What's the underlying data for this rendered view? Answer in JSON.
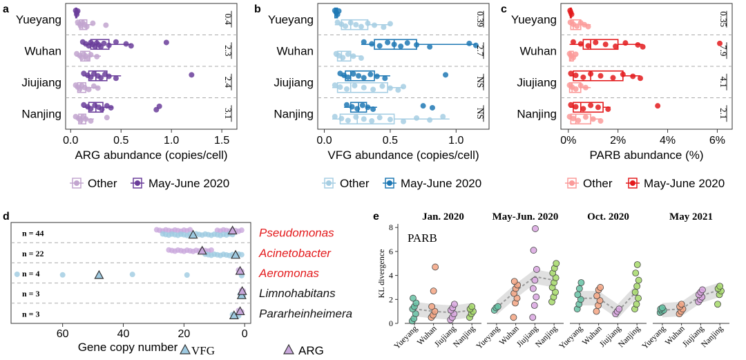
{
  "colors": {
    "purple_dark": "#6a3d9a",
    "purple_light": "#c2a5cf",
    "blue_dark": "#1f78b4",
    "blue_light": "#a6cee3",
    "red_dark": "#e31a1c",
    "red_light": "#fb9a99",
    "arg_marker": "#c9a8dc",
    "vfg_marker": "#9ecae1",
    "e_yueyang": "#66c2a5",
    "e_wuhan": "#f4a582",
    "e_jiujiang": "#d9a6e0",
    "e_nanjing": "#a6d96a",
    "red_text": "#e31a1c"
  },
  "panel_labels": {
    "a": "a",
    "b": "b",
    "c": "c",
    "d": "d",
    "e": "e"
  },
  "chart_data": [
    {
      "id": "a",
      "type": "boxplot",
      "orientation": "horizontal",
      "categories": [
        "Yueyang",
        "Wuhan",
        "Jiujiang",
        "Nanjing"
      ],
      "xlabel": "ARG abundance (copies/cell)",
      "xlim": [
        -0.05,
        1.65
      ],
      "xticks": [
        0.0,
        0.5,
        1.0,
        1.5
      ],
      "xtick_labels": [
        "0.0",
        "0.5",
        "1.0",
        "1.5"
      ],
      "annotations": [
        "0.4",
        "2.3",
        "2.4",
        "3.1"
      ],
      "legend": [
        "Other",
        "May-June 2020"
      ],
      "groups": [
        {
          "may": {
            "box": [
              0.05,
              0.05,
              0.06,
              0.06,
              0.07
            ],
            "points": [
              0.05,
              0.06,
              0.06,
              0.07
            ]
          },
          "other": {
            "box": [
              0.05,
              0.09,
              0.12,
              0.16,
              0.22
            ],
            "points": [
              0.07,
              0.09,
              0.1,
              0.12,
              0.14,
              0.16,
              0.22,
              0.35
            ]
          }
        },
        {
          "may": {
            "box": [
              0.12,
              0.2,
              0.26,
              0.38,
              0.6
            ],
            "points": [
              0.12,
              0.15,
              0.18,
              0.2,
              0.22,
              0.24,
              0.26,
              0.28,
              0.3,
              0.33,
              0.38,
              0.45,
              0.55,
              0.6,
              0.95
            ]
          },
          "other": {
            "box": [
              0.05,
              0.1,
              0.14,
              0.19,
              0.3
            ],
            "points": [
              0.06,
              0.09,
              0.11,
              0.13,
              0.15,
              0.17,
              0.2,
              0.26
            ]
          }
        },
        {
          "may": {
            "box": [
              0.12,
              0.18,
              0.25,
              0.36,
              0.5
            ],
            "points": [
              0.13,
              0.17,
              0.2,
              0.23,
              0.27,
              0.3,
              0.34,
              0.38,
              0.45,
              1.2
            ]
          },
          "other": {
            "box": [
              0.05,
              0.07,
              0.1,
              0.15,
              0.28
            ],
            "points": [
              0.05,
              0.07,
              0.09,
              0.11,
              0.14,
              0.18,
              0.23,
              0.27
            ]
          }
        },
        {
          "may": {
            "box": [
              0.12,
              0.18,
              0.25,
              0.32,
              0.42
            ],
            "points": [
              0.13,
              0.17,
              0.2,
              0.24,
              0.28,
              0.31,
              0.36,
              0.4,
              0.85,
              0.88
            ]
          },
          "other": {
            "box": [
              0.05,
              0.08,
              0.11,
              0.15,
              0.23
            ],
            "points": [
              0.05,
              0.08,
              0.1,
              0.12,
              0.15,
              0.2,
              0.36
            ]
          }
        }
      ]
    },
    {
      "id": "b",
      "type": "boxplot",
      "orientation": "horizontal",
      "categories": [
        "Yueyang",
        "Wuhan",
        "Jiujiang",
        "Nanjing"
      ],
      "xlabel": "VFG abundance (copies/cell)",
      "xlim": [
        -0.05,
        1.25
      ],
      "xticks": [
        0.0,
        0.5,
        1.0
      ],
      "xtick_labels": [
        "0.0",
        "0.5",
        "1.0"
      ],
      "annotations": [
        "0.39",
        "2.7",
        "NS",
        "NS"
      ],
      "legend": [
        "Other",
        "May-June 2020"
      ],
      "groups": [
        {
          "may": {
            "box": [
              0.07,
              0.08,
              0.09,
              0.1,
              0.12
            ],
            "points": [
              0.08,
              0.09,
              0.1,
              0.11
            ]
          },
          "other": {
            "box": [
              0.08,
              0.13,
              0.2,
              0.33,
              0.5
            ],
            "points": [
              0.1,
              0.13,
              0.16,
              0.2,
              0.24,
              0.28,
              0.33,
              0.38,
              0.45,
              0.5
            ]
          }
        },
        {
          "may": {
            "box": [
              0.28,
              0.38,
              0.53,
              0.7,
              1.15
            ],
            "points": [
              0.3,
              0.36,
              0.42,
              0.48,
              0.53,
              0.58,
              0.63,
              0.7,
              0.8,
              1.1,
              1.15
            ]
          },
          "other": {
            "box": [
              0.08,
              0.1,
              0.13,
              0.2,
              0.28
            ],
            "points": [
              0.09,
              0.11,
              0.14,
              0.18,
              0.22,
              0.28
            ]
          }
        },
        {
          "may": {
            "box": [
              0.12,
              0.16,
              0.2,
              0.38,
              0.5
            ],
            "points": [
              0.12,
              0.15,
              0.18,
              0.22,
              0.26,
              0.3,
              0.35,
              0.4,
              0.46,
              0.92
            ]
          },
          "other": {
            "box": [
              0.06,
              0.1,
              0.2,
              0.48,
              0.6
            ],
            "points": [
              0.08,
              0.12,
              0.17,
              0.23,
              0.3,
              0.37,
              0.44,
              0.5,
              0.56,
              0.6
            ]
          }
        },
        {
          "may": {
            "box": [
              0.15,
              0.2,
              0.26,
              0.32,
              0.4
            ],
            "points": [
              0.17,
              0.21,
              0.25,
              0.29,
              0.33,
              0.37,
              0.75,
              0.82
            ]
          },
          "other": {
            "box": [
              0.06,
              0.12,
              0.25,
              0.53,
              0.95
            ],
            "points": [
              0.08,
              0.13,
              0.18,
              0.24,
              0.3,
              0.36,
              0.42,
              0.5,
              0.6,
              0.7,
              0.8,
              0.9
            ]
          }
        }
      ]
    },
    {
      "id": "c",
      "type": "boxplot",
      "orientation": "horizontal",
      "categories": [
        "Yueyang",
        "Wuhan",
        "Jiujiang",
        "Nanjing"
      ],
      "xlabel": "PARB abundance (%)",
      "xlim": [
        -0.3,
        6.6
      ],
      "xticks": [
        0,
        2,
        4,
        6
      ],
      "xtick_labels": [
        "0%",
        "2%",
        "4%",
        "6%"
      ],
      "annotations": [
        "0.35",
        "7.9",
        "4.1",
        "2.1"
      ],
      "legend": [
        "Other",
        "May-June 2020"
      ],
      "groups": [
        {
          "may": {
            "box": [
              0.05,
              0.08,
              0.1,
              0.12,
              0.15
            ],
            "points": [
              0.07,
              0.1,
              0.13
            ]
          },
          "other": {
            "box": [
              0.05,
              0.1,
              0.2,
              0.5,
              0.9
            ],
            "points": [
              0.08,
              0.2,
              0.35,
              0.5,
              0.65,
              0.8
            ]
          }
        },
        {
          "may": {
            "box": [
              0.05,
              0.6,
              0.9,
              2.0,
              3.0
            ],
            "points": [
              0.2,
              0.5,
              0.8,
              1.1,
              1.5,
              1.9,
              2.3,
              2.8,
              3.0,
              6.1
            ]
          },
          "other": {
            "box": [
              0.02,
              0.05,
              0.1,
              0.2,
              0.35
            ],
            "points": [
              0.05,
              0.1,
              0.2,
              0.3
            ]
          }
        },
        {
          "may": {
            "box": [
              0.05,
              0.2,
              0.9,
              2.2,
              2.9
            ],
            "points": [
              0.1,
              0.3,
              0.6,
              0.9,
              1.3,
              1.8,
              2.2,
              2.6,
              2.9
            ]
          },
          "other": {
            "box": [
              0.02,
              0.05,
              0.15,
              0.5,
              0.9
            ],
            "points": [
              0.05,
              0.15,
              0.3,
              0.5,
              0.7
            ]
          }
        },
        {
          "may": {
            "box": [
              0.05,
              0.2,
              0.5,
              1.4,
              1.7
            ],
            "points": [
              0.1,
              0.3,
              0.6,
              0.9,
              1.2,
              1.6,
              3.6
            ]
          },
          "other": {
            "box": [
              0.02,
              0.1,
              0.3,
              0.9,
              1.3
            ],
            "points": [
              0.05,
              0.2,
              0.4,
              0.7,
              1.0,
              1.3
            ]
          }
        }
      ]
    },
    {
      "id": "d",
      "type": "scatter",
      "xlabel": "Gene copy number",
      "xlim": [
        77,
        -2
      ],
      "xaxis_reversed": true,
      "xticks": [
        60,
        40,
        20,
        0
      ],
      "xtick_labels": [
        "60",
        "40",
        "20",
        "0"
      ],
      "legend": [
        "VFG",
        "ARG"
      ],
      "rows": [
        {
          "n": "n = 44",
          "genus": "Pseudomonas",
          "highlight": true,
          "vfg_points": [
            27,
            26,
            25,
            24,
            23,
            22,
            21,
            20,
            19,
            18,
            17,
            16,
            15,
            14,
            13,
            12,
            11,
            10,
            9,
            8,
            7,
            6,
            5,
            4
          ],
          "arg_points": [
            29,
            28,
            27,
            26,
            25,
            24,
            23,
            22,
            21,
            20,
            19,
            18,
            9,
            8,
            7,
            6,
            5,
            4,
            3,
            2,
            1
          ],
          "vfg_mean": 17,
          "arg_mean": 4
        },
        {
          "n": "n = 22",
          "genus": "Acinetobacter",
          "highlight": true,
          "vfg_points": [
            13,
            12,
            11,
            10,
            9,
            8,
            7,
            6,
            5,
            4,
            3,
            2,
            1
          ],
          "arg_points": [
            25,
            24,
            23,
            22,
            21,
            20,
            19,
            18,
            17,
            16,
            15,
            14,
            13,
            12,
            11
          ],
          "vfg_mean": 3,
          "arg_mean": 14
        },
        {
          "n": "n = 4",
          "genus": "Aeromonas",
          "highlight": true,
          "vfg_points": [
            75,
            60,
            48,
            37,
            19,
            1
          ],
          "arg_points": [
            2,
            1.5,
            1
          ],
          "vfg_mean": 48,
          "arg_mean": 1.5
        },
        {
          "n": "n = 3",
          "genus": "Limnohabitans",
          "highlight": false,
          "vfg_points": [
            1.5,
            1,
            0.5
          ],
          "arg_points": [
            1,
            0.5
          ],
          "vfg_mean": 1,
          "arg_mean": 0.8
        },
        {
          "n": "n = 3",
          "genus": "Pararheinheimera",
          "highlight": false,
          "vfg_points": [
            4,
            3,
            2
          ],
          "arg_points": [
            2,
            1.5,
            1
          ],
          "vfg_mean": 3.5,
          "arg_mean": 1.5
        }
      ]
    },
    {
      "id": "e",
      "type": "scatter",
      "ylabel": "KL divergence",
      "inset_label": "PARB",
      "ylim": [
        0,
        8.3
      ],
      "yticks": [
        0,
        2,
        4,
        6,
        8
      ],
      "cities": [
        "Yueyang",
        "Wuhan",
        "Jiujiang",
        "Nanjing"
      ],
      "facets": [
        {
          "title": "Jan. 2020",
          "values": [
            [
              0.2,
              0.4,
              0.8,
              1.2,
              1.4,
              1.7,
              2.1
            ],
            [
              0.5,
              0.7,
              1.0,
              1.4,
              2.7,
              4.7
            ],
            [
              0.3,
              0.5,
              0.8,
              1.1,
              1.3,
              1.6
            ],
            [
              0.5,
              0.8,
              1.0,
              1.2,
              1.4
            ]
          ],
          "trend": [
            1.2,
            1.0,
            0.9,
            1.1
          ]
        },
        {
          "title": "May-Jun. 2020",
          "values": [
            [
              1.1,
              1.3,
              1.4
            ],
            [
              0.5,
              1.7,
              2.1,
              2.5,
              2.9,
              3.2,
              3.5
            ],
            [
              0.5,
              1.5,
              2.2,
              2.9,
              3.6,
              4.5,
              6.1,
              7.9
            ],
            [
              1.8,
              2.2,
              2.6,
              3.0,
              3.4,
              3.8,
              4.2,
              4.6,
              5.0
            ]
          ],
          "trend": [
            1.3,
            2.7,
            3.9,
            3.6
          ]
        },
        {
          "title": "Oct. 2020",
          "values": [
            [
              1.2,
              1.6,
              2.0,
              2.4,
              2.9,
              3.4
            ],
            [
              1.0,
              1.5,
              1.9,
              2.3,
              2.8,
              3.0
            ],
            [
              0.8,
              1.0,
              1.2
            ],
            [
              1.2,
              1.6,
              2.1,
              2.6,
              3.1,
              3.6,
              4.2,
              4.9
            ]
          ],
          "trend": [
            2.1,
            2.1,
            1.0,
            2.7
          ]
        },
        {
          "title": "May 2021",
          "values": [
            [
              0.9,
              1.0,
              1.1,
              1.2,
              1.3
            ],
            [
              0.8,
              1.0,
              1.2,
              1.4,
              1.6
            ],
            [
              1.8,
              2.0,
              2.2,
              2.4,
              2.6,
              2.8
            ],
            [
              1.6,
              2.4,
              2.7,
              2.9,
              3.1
            ]
          ],
          "trend": [
            1.1,
            1.2,
            2.3,
            2.8
          ]
        }
      ]
    }
  ]
}
